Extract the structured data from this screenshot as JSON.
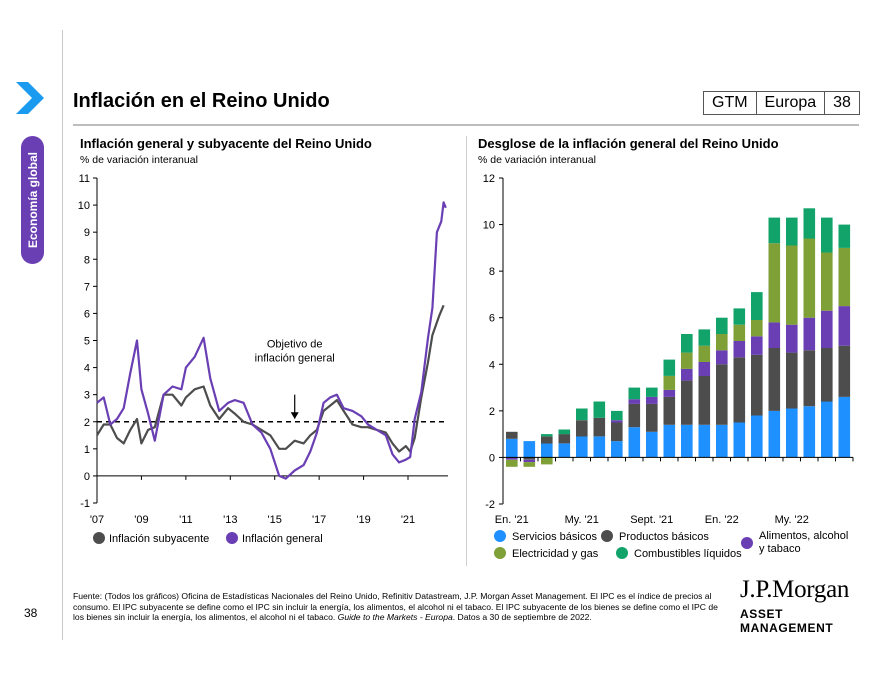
{
  "header": {
    "title": "Inflación en el Reino Unido",
    "badge": [
      "GTM",
      "Europa",
      "38"
    ],
    "side_tab": "Economía global",
    "page_number": "38"
  },
  "colors": {
    "purple": "#6a3fb4",
    "dark_gray": "#4d4d4d",
    "blue": "#1e90ff",
    "green": "#7f9f37",
    "teal": "#12a36b",
    "chevron": "#1a9bf0"
  },
  "source": {
    "text_a": "Fuente: (Todos los gráficos) Oficina de Estadísticas Nacionales del Reino Unido, Refinitiv Datastream, J.P. Morgan Asset Management. El IPC es el índice de precios al consumo. El IPC subyacente se define como el IPC sin incluir la energía, los alimentos, el alcohol ni el tabaco. El IPC subyacente de los bienes se define como el IPC de los bienes sin incluir la energía, los alimentos, el alcohol ni el tabaco. ",
    "text_italic": "Guide to the Markets - Europa",
    "text_b": ". Datos a 30 de septiembre de 2022."
  },
  "logo": {
    "line1": "J.P.Morgan",
    "line2": "ASSET MANAGEMENT"
  },
  "chart_data": [
    {
      "type": "line",
      "title": "Inflación general y subyacente del Reino Unido",
      "ylabel": "% de variación interanual",
      "ylim": [
        -1,
        11
      ],
      "yticks": [
        -1,
        0,
        1,
        2,
        3,
        4,
        5,
        6,
        7,
        8,
        9,
        10,
        11
      ],
      "xlim": [
        2007,
        2022.8
      ],
      "xticks": [
        2007,
        2009,
        2011,
        2013,
        2015,
        2017,
        2019,
        2021
      ],
      "xtick_labels": [
        "'07",
        "'09",
        "'11",
        "'13",
        "'15",
        "'17",
        "'19",
        "'21"
      ],
      "target_line": {
        "value": 2,
        "label": [
          "Objetivo de",
          "inflación general"
        ]
      },
      "series": [
        {
          "name": "Inflación subyacente",
          "color": "#4d4d4d",
          "points": [
            [
              2007.0,
              1.5
            ],
            [
              2007.3,
              1.9
            ],
            [
              2007.6,
              1.9
            ],
            [
              2007.9,
              1.4
            ],
            [
              2008.2,
              1.2
            ],
            [
              2008.5,
              1.7
            ],
            [
              2008.8,
              2.1
            ],
            [
              2009.0,
              1.2
            ],
            [
              2009.3,
              1.7
            ],
            [
              2009.6,
              1.8
            ],
            [
              2010.0,
              3.0
            ],
            [
              2010.4,
              3.0
            ],
            [
              2010.8,
              2.6
            ],
            [
              2011.0,
              2.9
            ],
            [
              2011.4,
              3.2
            ],
            [
              2011.8,
              3.3
            ],
            [
              2012.1,
              2.6
            ],
            [
              2012.5,
              2.1
            ],
            [
              2012.9,
              2.5
            ],
            [
              2013.2,
              2.3
            ],
            [
              2013.6,
              2.0
            ],
            [
              2014.0,
              1.9
            ],
            [
              2014.4,
              1.7
            ],
            [
              2014.8,
              1.5
            ],
            [
              2015.2,
              1.0
            ],
            [
              2015.5,
              1.0
            ],
            [
              2015.9,
              1.3
            ],
            [
              2016.3,
              1.2
            ],
            [
              2016.6,
              1.5
            ],
            [
              2016.9,
              1.7
            ],
            [
              2017.2,
              2.4
            ],
            [
              2017.5,
              2.6
            ],
            [
              2017.8,
              2.8
            ],
            [
              2018.1,
              2.4
            ],
            [
              2018.5,
              1.9
            ],
            [
              2018.9,
              1.8
            ],
            [
              2019.2,
              1.8
            ],
            [
              2019.6,
              1.7
            ],
            [
              2020.0,
              1.6
            ],
            [
              2020.3,
              1.2
            ],
            [
              2020.6,
              0.9
            ],
            [
              2020.9,
              1.1
            ],
            [
              2021.1,
              0.9
            ],
            [
              2021.3,
              1.4
            ],
            [
              2021.6,
              2.9
            ],
            [
              2021.9,
              4.2
            ],
            [
              2022.1,
              5.2
            ],
            [
              2022.4,
              5.9
            ],
            [
              2022.6,
              6.3
            ]
          ]
        },
        {
          "name": "Inflación general",
          "color": "#6a3fb4",
          "points": [
            [
              2007.0,
              2.7
            ],
            [
              2007.3,
              2.9
            ],
            [
              2007.6,
              1.9
            ],
            [
              2007.9,
              2.1
            ],
            [
              2008.2,
              2.5
            ],
            [
              2008.5,
              3.8
            ],
            [
              2008.8,
              5.0
            ],
            [
              2009.0,
              3.2
            ],
            [
              2009.3,
              2.3
            ],
            [
              2009.6,
              1.3
            ],
            [
              2010.0,
              3.0
            ],
            [
              2010.4,
              3.3
            ],
            [
              2010.8,
              3.2
            ],
            [
              2011.0,
              4.0
            ],
            [
              2011.4,
              4.4
            ],
            [
              2011.8,
              5.1
            ],
            [
              2012.1,
              3.6
            ],
            [
              2012.5,
              2.4
            ],
            [
              2012.9,
              2.7
            ],
            [
              2013.2,
              2.8
            ],
            [
              2013.6,
              2.7
            ],
            [
              2014.0,
              1.9
            ],
            [
              2014.4,
              1.6
            ],
            [
              2014.8,
              1.0
            ],
            [
              2015.2,
              0.0
            ],
            [
              2015.5,
              -0.1
            ],
            [
              2015.9,
              0.2
            ],
            [
              2016.3,
              0.4
            ],
            [
              2016.6,
              0.9
            ],
            [
              2016.9,
              1.6
            ],
            [
              2017.2,
              2.7
            ],
            [
              2017.5,
              2.9
            ],
            [
              2017.8,
              3.0
            ],
            [
              2018.1,
              2.5
            ],
            [
              2018.5,
              2.4
            ],
            [
              2018.9,
              2.2
            ],
            [
              2019.2,
              1.9
            ],
            [
              2019.6,
              1.7
            ],
            [
              2020.0,
              1.5
            ],
            [
              2020.3,
              0.8
            ],
            [
              2020.6,
              0.5
            ],
            [
              2020.9,
              0.6
            ],
            [
              2021.1,
              0.7
            ],
            [
              2021.3,
              2.1
            ],
            [
              2021.6,
              3.1
            ],
            [
              2021.9,
              5.1
            ],
            [
              2022.1,
              6.2
            ],
            [
              2022.3,
              9.0
            ],
            [
              2022.5,
              9.4
            ],
            [
              2022.6,
              10.1
            ],
            [
              2022.7,
              9.9
            ]
          ]
        }
      ]
    },
    {
      "type": "bar",
      "stacked": true,
      "title": "Desglose de la inflación general del Reino Unido",
      "ylabel": "% de variación interanual",
      "ylim": [
        -2,
        12
      ],
      "yticks": [
        -2,
        0,
        2,
        4,
        6,
        8,
        10,
        12
      ],
      "xtick_labels": [
        [
          "En. '21",
          0
        ],
        [
          "My. '21",
          4
        ],
        [
          "Sept. '21",
          8
        ],
        [
          "En. '22",
          12
        ],
        [
          "My. '22",
          16
        ]
      ],
      "series": [
        {
          "name": "Servicios básicos",
          "color": "#1e90ff",
          "values": [
            0.8,
            0.7,
            0.6,
            0.6,
            0.9,
            0.9,
            0.7,
            1.3,
            1.1,
            1.4,
            1.4,
            1.4,
            1.4,
            1.5,
            1.8,
            2.0,
            2.1,
            2.2,
            2.4,
            2.6
          ]
        },
        {
          "name": "Productos básicos",
          "color": "#4d4d4d",
          "values": [
            0.3,
            -0.1,
            0.3,
            0.4,
            0.7,
            0.8,
            0.8,
            1.0,
            1.2,
            1.2,
            1.9,
            2.1,
            2.6,
            2.8,
            2.6,
            2.7,
            2.4,
            2.4,
            2.3,
            2.2
          ]
        },
        {
          "name": "Alimentos, alcohol y tabaco",
          "color": "#6a3fb4",
          "values": [
            -0.1,
            -0.1,
            0.0,
            0.0,
            0.0,
            0.0,
            0.1,
            0.2,
            0.3,
            0.3,
            0.5,
            0.6,
            0.6,
            0.7,
            0.8,
            1.1,
            1.2,
            1.4,
            1.6,
            1.7
          ]
        },
        {
          "name": "Electricidad y gas",
          "color": "#7f9f37",
          "values": [
            -0.3,
            -0.2,
            -0.3,
            0.0,
            0.0,
            0.0,
            0.0,
            0.0,
            0.0,
            0.6,
            0.7,
            0.7,
            0.7,
            0.7,
            0.7,
            3.4,
            3.4,
            3.4,
            2.5,
            2.5
          ]
        },
        {
          "name": "Combustibles líquidos",
          "color": "#12a36b",
          "values": [
            0.0,
            0.0,
            0.1,
            0.2,
            0.5,
            0.7,
            0.4,
            0.5,
            0.4,
            0.7,
            0.8,
            0.7,
            0.7,
            0.7,
            1.2,
            1.1,
            1.2,
            1.3,
            1.5,
            1.0
          ]
        }
      ]
    }
  ]
}
